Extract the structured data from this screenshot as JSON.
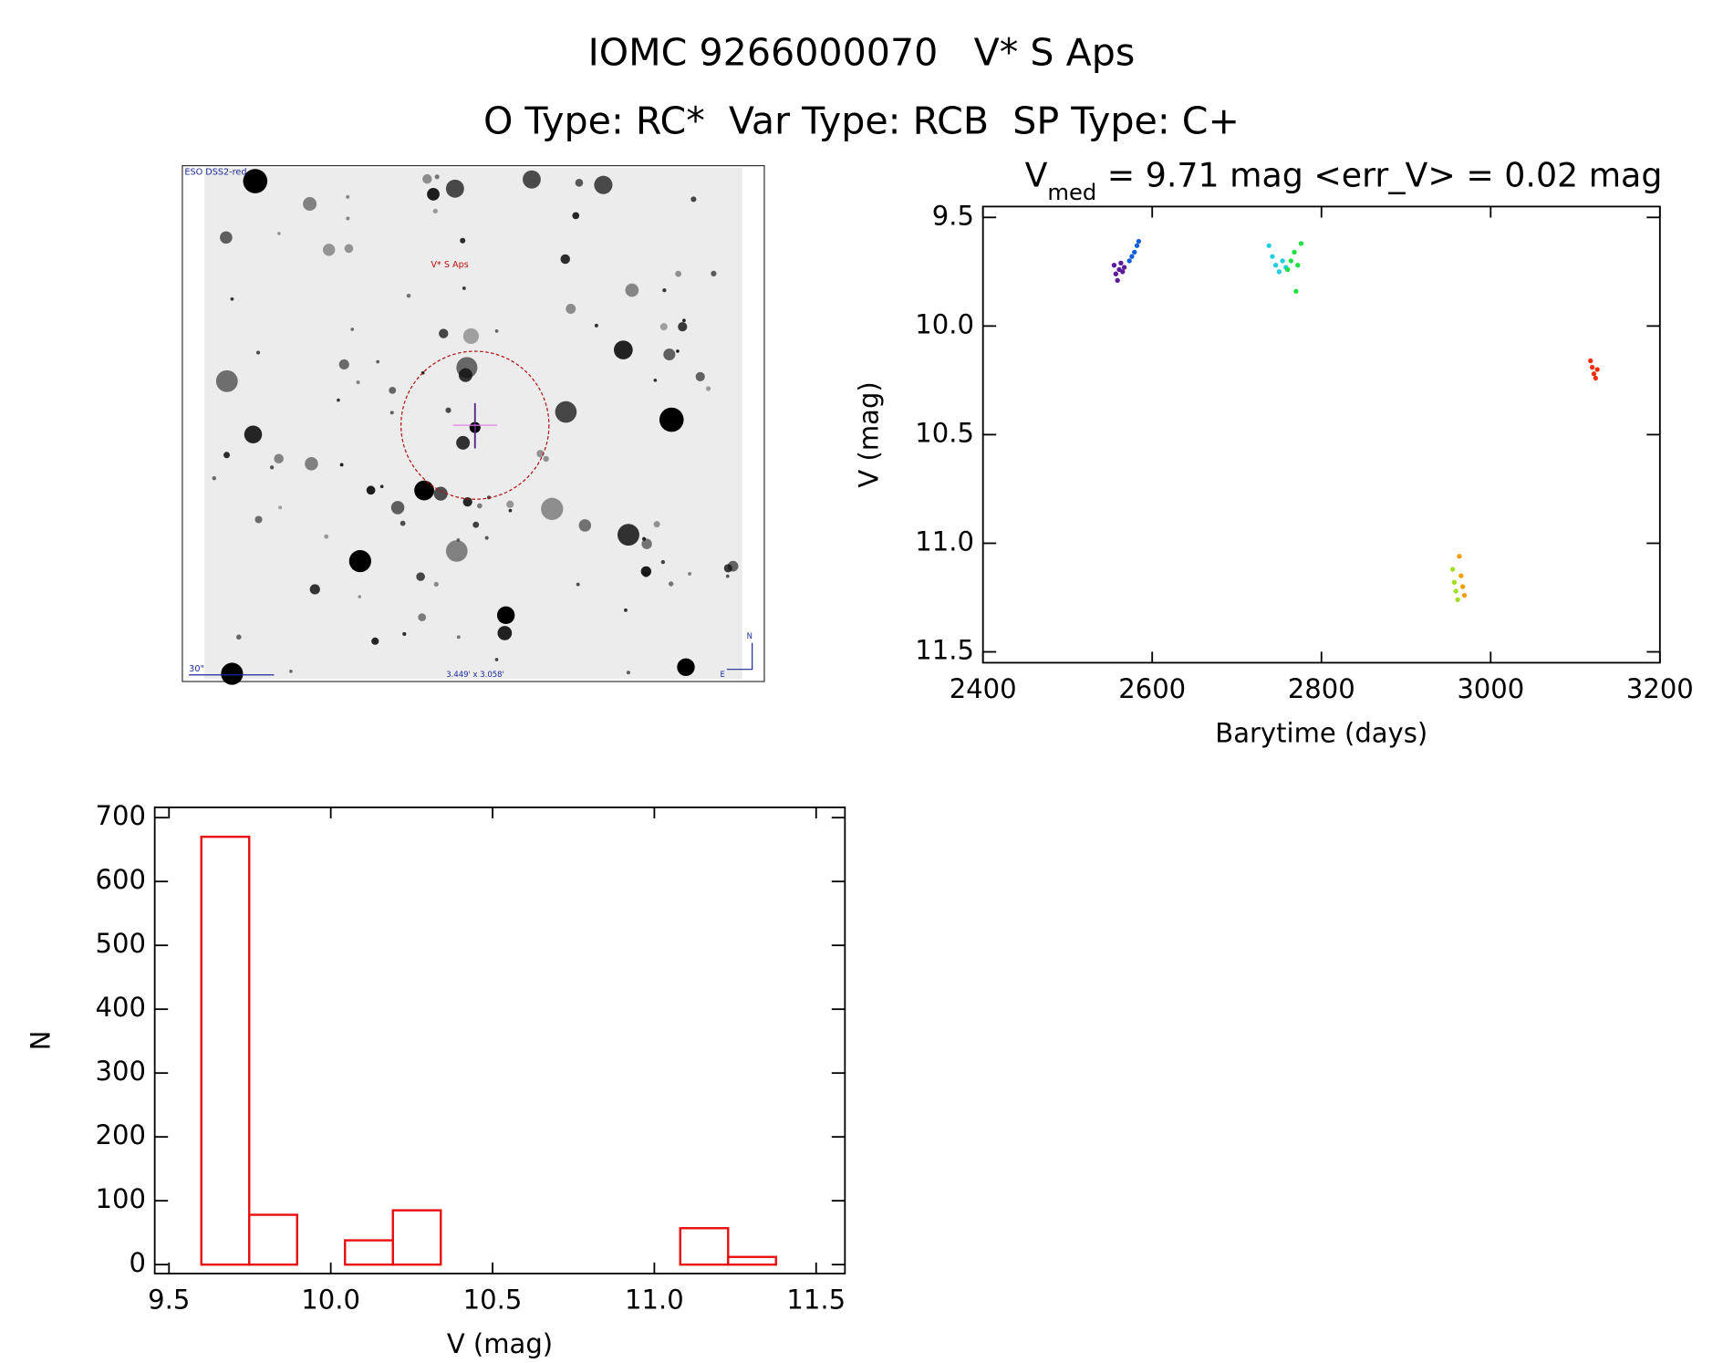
{
  "header": {
    "title": "IOMC 9266000070   V* S Aps",
    "subtitle": "O Type: RC*  Var Type: RCB  SP Type: C+"
  },
  "sky_image": {
    "survey": "ESO DSS2-red",
    "target": "V* S Aps",
    "scale": "30\"",
    "size": "3.449' x 3.058'",
    "north": "N",
    "east": "E"
  },
  "chart_data": [
    {
      "type": "scatter",
      "title": [
        "V",
        "med",
        " = 9.71 mag <err_V> = 0.02 mag"
      ],
      "x_label": "Barytime (days)",
      "y_label": "V (mag)",
      "xlim": [
        2400,
        3200
      ],
      "xticks": [
        2400,
        2600,
        2800,
        3000,
        3200
      ],
      "ylim": [
        11.55,
        9.45
      ],
      "yticks": [
        9.5,
        {
          "value": 10,
          "label": "10.0"
        },
        10.5,
        {
          "value": 11,
          "label": "11.0"
        },
        11.5
      ],
      "series": [
        {
          "color": "#5a1a9a",
          "x": [
            2555,
            2557,
            2559,
            2561,
            2563,
            2565,
            2567
          ],
          "values": [
            9.72,
            9.76,
            9.79,
            9.74,
            9.71,
            9.75,
            9.73
          ]
        },
        {
          "color": "#1060e0",
          "x": [
            2573,
            2576,
            2579,
            2582,
            2584
          ],
          "values": [
            9.7,
            9.68,
            9.66,
            9.63,
            9.61
          ]
        },
        {
          "color": "#20d0e0",
          "x": [
            2738,
            2742,
            2746,
            2750,
            2754,
            2758
          ],
          "values": [
            9.63,
            9.68,
            9.72,
            9.75,
            9.7,
            9.73
          ]
        },
        {
          "color": "#20e040",
          "x": [
            2760,
            2764,
            2768,
            2770,
            2772,
            2776
          ],
          "values": [
            9.74,
            9.7,
            9.66,
            9.84,
            9.72,
            9.62
          ]
        },
        {
          "color": "#a0e020",
          "x": [
            2955,
            2957,
            2959,
            2961
          ],
          "values": [
            11.12,
            11.18,
            11.22,
            11.26
          ]
        },
        {
          "color": "#f0a000",
          "x": [
            2963,
            2965,
            2967,
            2969
          ],
          "values": [
            11.06,
            11.15,
            11.2,
            11.24
          ]
        },
        {
          "color": "#f03010",
          "x": [
            3118,
            3120,
            3122,
            3124,
            3126
          ],
          "values": [
            10.16,
            10.19,
            10.22,
            10.24,
            10.2
          ]
        }
      ]
    },
    {
      "type": "histogram",
      "x_label": "V (mag)",
      "y_label": "N",
      "color": "#e81010",
      "bins": [
        9.6,
        9.748,
        9.896,
        10.044,
        10.192,
        10.34,
        10.488,
        10.636,
        10.784,
        10.932,
        11.08,
        11.228,
        11.376
      ],
      "values": [
        670,
        78,
        0,
        38,
        85,
        0,
        0,
        0,
        0,
        0,
        57,
        12
      ],
      "xlim": [
        9.456,
        11.589
      ],
      "xticks": [
        9.5,
        {
          "value": 10,
          "label": "10.0"
        },
        10.5,
        {
          "value": 11,
          "label": "11.0"
        },
        11.5
      ],
      "ylim": [
        -14,
        716
      ],
      "yticks": [
        0,
        100,
        200,
        300,
        400,
        500,
        600,
        700
      ]
    }
  ]
}
